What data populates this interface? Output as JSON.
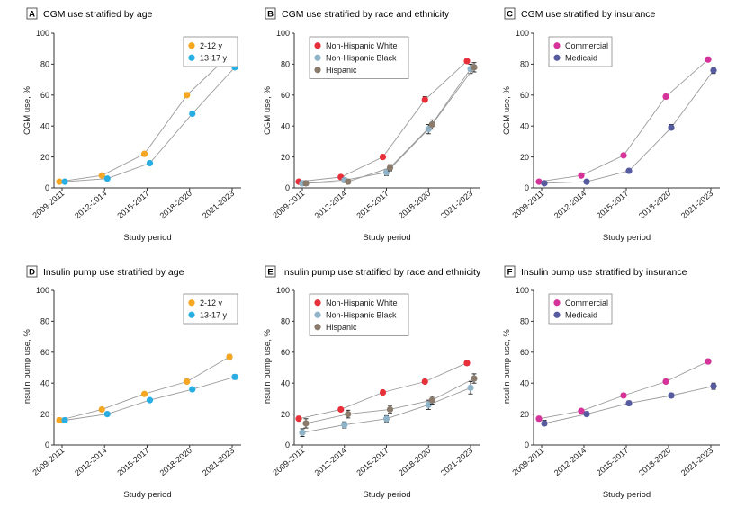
{
  "chart_data": [
    {
      "type": "line",
      "letter": "A",
      "title": "CGM use stratified by age",
      "xlabel": "Study period",
      "ylabel": "CGM use, %",
      "ylim": [
        0,
        100
      ],
      "categories": [
        "2009-2011",
        "2012-2014",
        "2015-2017",
        "2018-2020",
        "2021-2023"
      ],
      "yticks": [
        "0",
        "20",
        "40",
        "60",
        "80",
        "100"
      ],
      "legend_position": "top-right",
      "series": [
        {
          "name": "2-12 y",
          "color": "#f5a623",
          "values": [
            4,
            8,
            22,
            60,
            86
          ],
          "ci": [
            [
              3,
              5
            ],
            [
              7,
              9
            ],
            [
              21,
              23
            ],
            [
              59,
              61.5
            ],
            [
              85,
              87.5
            ]
          ]
        },
        {
          "name": "13-17 y",
          "color": "#29aee3",
          "values": [
            4,
            6,
            16,
            48,
            78
          ],
          "ci": [
            [
              3,
              5
            ],
            [
              5,
              7
            ],
            [
              15,
              17
            ],
            [
              47,
              49.5
            ],
            [
              77,
              79.5
            ]
          ]
        }
      ]
    },
    {
      "type": "line",
      "letter": "B",
      "title": "CGM use stratified by race and ethnicity",
      "xlabel": "Study period",
      "ylabel": "CGM use, %",
      "ylim": [
        0,
        100
      ],
      "categories": [
        "2009-2011",
        "2012-2014",
        "2015-2017",
        "2018-2020",
        "2021-2023"
      ],
      "yticks": [
        "0",
        "20",
        "40",
        "60",
        "80",
        "100"
      ],
      "legend_position": "top-left",
      "series": [
        {
          "name": "Non-Hispanic White",
          "color": "#e8303a",
          "values": [
            4,
            7,
            20,
            57,
            82
          ],
          "ci": [
            [
              3,
              5
            ],
            [
              6,
              8
            ],
            [
              19,
              21
            ],
            [
              55.5,
              59
            ],
            [
              81,
              84
            ]
          ]
        },
        {
          "name": "Non-Hispanic Black",
          "color": "#8fb3c9",
          "values": [
            3,
            5,
            10,
            38,
            77
          ],
          "ci": [
            [
              1.5,
              4.5
            ],
            [
              3.5,
              6.5
            ],
            [
              8,
              12
            ],
            [
              35,
              41
            ],
            [
              74,
              80
            ]
          ]
        },
        {
          "name": "Hispanic",
          "color": "#8a7b6c",
          "values": [
            3,
            4,
            13,
            41,
            78
          ],
          "ci": [
            [
              1.5,
              4.5
            ],
            [
              2.5,
              5.5
            ],
            [
              11,
              15
            ],
            [
              38,
              44
            ],
            [
              75,
              81
            ]
          ]
        }
      ]
    },
    {
      "type": "line",
      "letter": "C",
      "title": "CGM use stratified by insurance",
      "xlabel": "Study period",
      "ylabel": "CGM use, %",
      "ylim": [
        0,
        100
      ],
      "categories": [
        "2009-2011",
        "2012-2014",
        "2015-2017",
        "2018-2020",
        "2021-2023"
      ],
      "yticks": [
        "0",
        "20",
        "40",
        "60",
        "80",
        "100"
      ],
      "legend_position": "top-left",
      "series": [
        {
          "name": "Commercial",
          "color": "#d6339a",
          "values": [
            4,
            8,
            21,
            59,
            83
          ],
          "ci": [
            [
              3,
              5
            ],
            [
              7,
              9
            ],
            [
              20,
              22
            ],
            [
              58,
              60.5
            ],
            [
              82,
              84.5
            ]
          ]
        },
        {
          "name": "Medicaid",
          "color": "#565a9e",
          "values": [
            3,
            4,
            11,
            39,
            76
          ],
          "ci": [
            [
              2,
              4
            ],
            [
              3,
              5
            ],
            [
              10,
              12
            ],
            [
              37.5,
              41
            ],
            [
              74,
              78
            ]
          ]
        }
      ]
    },
    {
      "type": "line",
      "letter": "D",
      "title": "Insulin pump use stratified by age",
      "xlabel": "Study period",
      "ylabel": "Insulin pump use, %",
      "ylim": [
        0,
        100
      ],
      "categories": [
        "2009-2011",
        "2012-2014",
        "2015-2017",
        "2018-2020",
        "2021-2023"
      ],
      "yticks": [
        "0",
        "20",
        "40",
        "60",
        "80",
        "100"
      ],
      "legend_position": "top-right",
      "series": [
        {
          "name": "2-12 y",
          "color": "#f5a623",
          "values": [
            16,
            23,
            33,
            41,
            57
          ],
          "ci": [
            [
              15,
              17.5
            ],
            [
              22,
              24
            ],
            [
              32,
              34
            ],
            [
              40,
              42.5
            ],
            [
              55.5,
              58.5
            ]
          ]
        },
        {
          "name": "13-17 y",
          "color": "#29aee3",
          "values": [
            16,
            20,
            29,
            36,
            44
          ],
          "ci": [
            [
              15,
              17.5
            ],
            [
              19,
              21
            ],
            [
              28,
              30
            ],
            [
              35,
              37.5
            ],
            [
              42.5,
              45.5
            ]
          ]
        }
      ]
    },
    {
      "type": "line",
      "letter": "E",
      "title": "Insulin pump use stratified by race and ethnicity",
      "xlabel": "Study period",
      "ylabel": "Insulin pump use, %",
      "ylim": [
        0,
        100
      ],
      "categories": [
        "2009-2011",
        "2012-2014",
        "2015-2017",
        "2018-2020",
        "2021-2023"
      ],
      "yticks": [
        "0",
        "20",
        "40",
        "60",
        "80",
        "100"
      ],
      "legend_position": "top-left",
      "series": [
        {
          "name": "Non-Hispanic White",
          "color": "#e8303a",
          "values": [
            17,
            23,
            34,
            41,
            53
          ],
          "ci": [
            [
              16,
              18.5
            ],
            [
              22,
              24
            ],
            [
              33,
              35
            ],
            [
              40,
              42
            ],
            [
              51.5,
              54.5
            ]
          ]
        },
        {
          "name": "Non-Hispanic Black",
          "color": "#8fb3c9",
          "values": [
            8,
            13,
            17,
            26,
            37
          ],
          "ci": [
            [
              5.5,
              10.5
            ],
            [
              11,
              15
            ],
            [
              15,
              19
            ],
            [
              23,
              29
            ],
            [
              33,
              41
            ]
          ]
        },
        {
          "name": "Hispanic",
          "color": "#8a7b6c",
          "values": [
            14,
            20,
            23,
            29,
            43
          ],
          "ci": [
            [
              11,
              17
            ],
            [
              17.5,
              22.5
            ],
            [
              20.5,
              25.5
            ],
            [
              26.5,
              31.5
            ],
            [
              40,
              46
            ]
          ]
        }
      ]
    },
    {
      "type": "line",
      "letter": "F",
      "title": "Insulin pump use stratified by insurance",
      "xlabel": "Study period",
      "ylabel": "Insulin pump use, %",
      "ylim": [
        0,
        100
      ],
      "categories": [
        "2009-2011",
        "2012-2014",
        "2015-2017",
        "2018-2020",
        "2021-2023"
      ],
      "yticks": [
        "0",
        "20",
        "40",
        "60",
        "80",
        "100"
      ],
      "legend_position": "top-left",
      "series": [
        {
          "name": "Commercial",
          "color": "#d6339a",
          "values": [
            17,
            22,
            32,
            41,
            54
          ],
          "ci": [
            [
              15.5,
              18.5
            ],
            [
              21,
              23
            ],
            [
              31,
              33.5
            ],
            [
              40,
              42.5
            ],
            [
              52.5,
              55.5
            ]
          ]
        },
        {
          "name": "Medicaid",
          "color": "#565a9e",
          "values": [
            14,
            20,
            27,
            32,
            38
          ],
          "ci": [
            [
              12.5,
              16
            ],
            [
              19,
              21.5
            ],
            [
              26,
              28.5
            ],
            [
              30.5,
              33.5
            ],
            [
              36,
              40
            ]
          ]
        }
      ]
    }
  ]
}
